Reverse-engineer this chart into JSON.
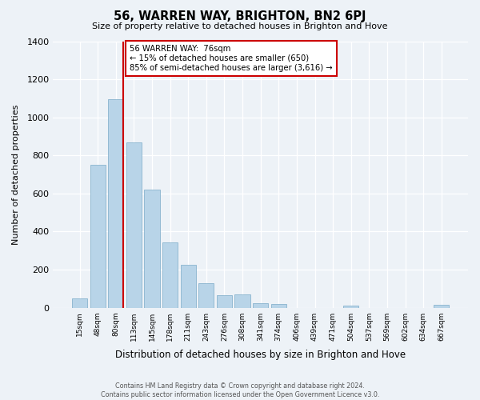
{
  "title": "56, WARREN WAY, BRIGHTON, BN2 6PJ",
  "subtitle": "Size of property relative to detached houses in Brighton and Hove",
  "xlabel": "Distribution of detached houses by size in Brighton and Hove",
  "ylabel": "Number of detached properties",
  "footnote1": "Contains HM Land Registry data © Crown copyright and database right 2024.",
  "footnote2": "Contains public sector information licensed under the Open Government Licence v3.0.",
  "bin_labels": [
    "15sqm",
    "48sqm",
    "80sqm",
    "113sqm",
    "145sqm",
    "178sqm",
    "211sqm",
    "243sqm",
    "276sqm",
    "308sqm",
    "341sqm",
    "374sqm",
    "406sqm",
    "439sqm",
    "471sqm",
    "504sqm",
    "537sqm",
    "569sqm",
    "602sqm",
    "634sqm",
    "667sqm"
  ],
  "bar_heights": [
    50,
    750,
    1095,
    870,
    620,
    345,
    225,
    130,
    65,
    70,
    25,
    20,
    0,
    0,
    0,
    10,
    0,
    0,
    0,
    0,
    15
  ],
  "bar_color": "#b8d4e8",
  "bar_edge_color": "#7aaac8",
  "highlight_color": "#cc0000",
  "ylim": [
    0,
    1400
  ],
  "yticks": [
    0,
    200,
    400,
    600,
    800,
    1000,
    1200,
    1400
  ],
  "annotation_title": "56 WARREN WAY:  76sqm",
  "annotation_line1": "← 15% of detached houses are smaller (650)",
  "annotation_line2": "85% of semi-detached houses are larger (3,616) →",
  "annotation_box_color": "#ffffff",
  "annotation_border_color": "#cc0000",
  "vline_x_index": 2,
  "bar_width": 0.85,
  "bg_color": "#edf2f7"
}
